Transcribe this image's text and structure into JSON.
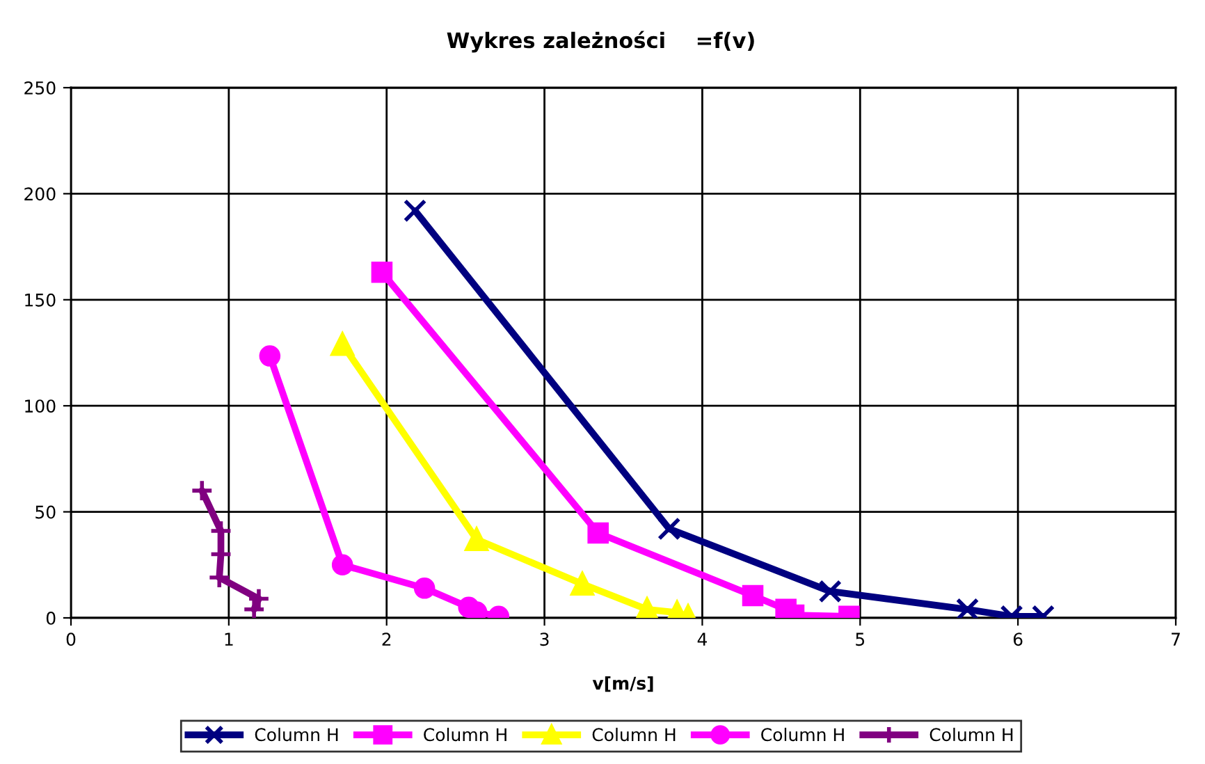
{
  "chart_data": {
    "type": "line",
    "title": "Wykres zależności    =f(v)",
    "xlabel": "v[m/s]",
    "xlim": [
      0,
      7
    ],
    "xticks": [
      0,
      1,
      2,
      3,
      4,
      5,
      6,
      7
    ],
    "ylim": [
      0,
      250
    ],
    "yticks": [
      0,
      50,
      100,
      150,
      200,
      250
    ],
    "grid": true,
    "legend": "bottom",
    "line_style": "solid",
    "series": [
      {
        "name": "Column H",
        "color": "#000080",
        "marker": "cross",
        "x": [
          2.18,
          3.79,
          4.81,
          5.68,
          5.96,
          6.16
        ],
        "values": [
          192,
          42,
          12.5,
          4,
          0.7,
          0.7
        ]
      },
      {
        "name": "Column H",
        "color": "#ff00ff",
        "marker": "square",
        "x": [
          1.97,
          3.34,
          4.32,
          4.53,
          4.58,
          4.93
        ],
        "values": [
          163,
          40,
          10.5,
          4,
          1.3,
          0.7
        ]
      },
      {
        "name": "Column H",
        "color": "#ffff00",
        "marker": "triangle",
        "x": [
          1.72,
          2.57,
          3.24,
          3.65,
          3.84,
          3.91
        ],
        "values": [
          129,
          37,
          16,
          4,
          2.5,
          0.7
        ]
      },
      {
        "name": "Column H",
        "color": "#ff00ff",
        "marker": "circle",
        "x": [
          1.26,
          1.72,
          2.24,
          2.52,
          2.57,
          2.71
        ],
        "values": [
          123.5,
          25,
          14,
          5,
          2.8,
          0.7
        ]
      },
      {
        "name": "Column H",
        "color": "#800080",
        "marker": "plus",
        "x": [
          0.83,
          0.95,
          0.95,
          0.94,
          1.19,
          1.16
        ],
        "values": [
          60,
          41,
          30,
          19,
          9,
          4
        ]
      }
    ]
  }
}
